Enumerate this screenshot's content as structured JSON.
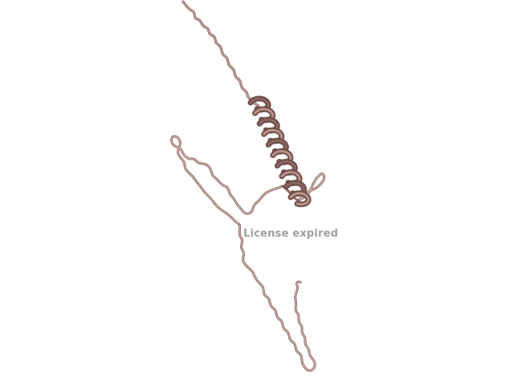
{
  "viewer": {
    "watermark_text": "License expired",
    "colors": {
      "background": "#ffffff",
      "protein_ribbon": "#b8928a",
      "protein_ribbon_dark": "#6e4e48",
      "helix_fill": "#8a6660",
      "watermark": "#a0a0a0"
    }
  }
}
